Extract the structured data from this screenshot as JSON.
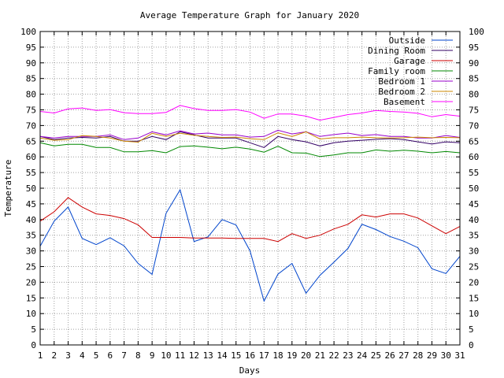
{
  "chart_data": {
    "type": "line",
    "title": "Average Temperature Graph for January 2020",
    "xlabel": "Days",
    "ylabel": "Temperature",
    "ylim": [
      0,
      100
    ],
    "y_ticks": [
      0,
      5,
      10,
      15,
      20,
      25,
      30,
      35,
      40,
      45,
      50,
      55,
      60,
      65,
      70,
      75,
      80,
      85,
      90,
      95,
      100
    ],
    "x": [
      1,
      2,
      3,
      4,
      5,
      6,
      7,
      8,
      9,
      10,
      11,
      12,
      13,
      14,
      15,
      16,
      17,
      18,
      19,
      20,
      21,
      22,
      23,
      24,
      25,
      26,
      27,
      28,
      29,
      30,
      31
    ],
    "grid": true,
    "legend_position": "top-right",
    "series": [
      {
        "name": "Outside",
        "color": "#0044cc",
        "values": [
          31.5,
          39.5,
          44,
          34,
          32,
          34.2,
          31.6,
          26,
          22.5,
          42,
          49.5,
          33,
          34.5,
          40,
          38.3,
          30,
          14,
          22.6,
          26,
          16.5,
          22.2,
          26.4,
          30.8,
          38.5,
          36.8,
          34.6,
          33.1,
          31,
          24.3,
          22.8,
          28.3
        ]
      },
      {
        "name": "Dining Room",
        "color": "#330066",
        "values": [
          66.5,
          65.5,
          66,
          66.2,
          66,
          66.5,
          65,
          65,
          66.5,
          65.5,
          68,
          67,
          66,
          66,
          66,
          64.5,
          63,
          66.5,
          65.5,
          64.8,
          63.5,
          64.5,
          65,
          65.3,
          65.6,
          65.8,
          65.5,
          64.8,
          64.1,
          64.8,
          64.5
        ]
      },
      {
        "name": "Garage",
        "color": "#cc0000",
        "values": [
          39.5,
          42.5,
          47,
          44,
          41.8,
          41.3,
          40.3,
          38.3,
          34.3,
          34.3,
          34.3,
          34.1,
          34.1,
          34.1,
          34,
          34,
          34,
          33,
          35.5,
          34,
          35,
          37,
          38.5,
          41.5,
          40.8,
          41.8,
          41.8,
          40.5,
          38,
          35.5,
          37.8
        ]
      },
      {
        "name": "Family room",
        "color": "#008800",
        "values": [
          64.5,
          63.5,
          64,
          64,
          63,
          63,
          61.6,
          61.6,
          62,
          61.3,
          63.3,
          63.5,
          63.1,
          62.6,
          63.1,
          62.5,
          61.5,
          63.4,
          61.3,
          61.2,
          60.1,
          60.6,
          61.3,
          61.3,
          62.2,
          61.8,
          62.1,
          61.8,
          61.3,
          61.7,
          61.3
        ]
      },
      {
        "name": "Bedroom 1",
        "color": "#9900cc",
        "values": [
          66.5,
          66,
          66.5,
          66.5,
          66.5,
          67,
          65.5,
          66,
          68,
          67,
          68.3,
          67.3,
          67.6,
          67,
          67,
          66.3,
          66.5,
          68.5,
          67.3,
          68,
          66.5,
          67.1,
          67.6,
          66.8,
          67.1,
          66.5,
          66.5,
          66,
          66,
          66.8,
          66.2
        ]
      },
      {
        "name": "Bedroom 2",
        "color": "#cc8800",
        "values": [
          66,
          65.3,
          65.5,
          66.8,
          66.5,
          66,
          65,
          64.7,
          67.5,
          66.5,
          67.5,
          66.9,
          66.5,
          66.2,
          66.3,
          65.8,
          65.5,
          67.7,
          66.5,
          68,
          65.7,
          66.1,
          66.1,
          66.3,
          66.1,
          66,
          66.1,
          66.3,
          66.1,
          66.2,
          66.1
        ]
      },
      {
        "name": "Basement",
        "color": "#ff00ff",
        "values": [
          74.5,
          74,
          75.3,
          75.6,
          74.8,
          75.1,
          74.1,
          73.8,
          73.8,
          74.2,
          76.4,
          75.4,
          74.8,
          74.8,
          75.1,
          74.3,
          72.3,
          73.7,
          73.7,
          73,
          71.7,
          72.6,
          73.5,
          74,
          74.8,
          74.5,
          74.3,
          73.9,
          72.8,
          73.5,
          73
        ]
      }
    ]
  }
}
